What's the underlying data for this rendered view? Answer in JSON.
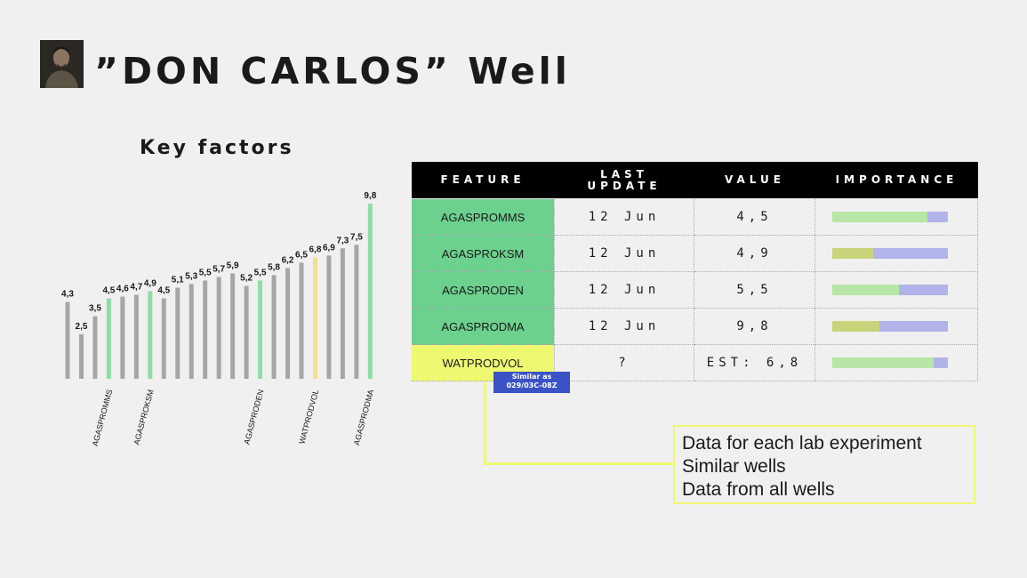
{
  "header": {
    "title": "”DON CARLOS” Well"
  },
  "chart_data": {
    "type": "bar",
    "title": "Key factors",
    "values": [
      4.3,
      2.5,
      3.5,
      4.5,
      4.6,
      4.7,
      4.9,
      4.5,
      5.1,
      5.3,
      5.5,
      5.7,
      5.9,
      5.2,
      5.5,
      5.8,
      6.2,
      6.5,
      6.8,
      6.9,
      7.3,
      7.5,
      9.8
    ],
    "labels": [
      "4,3",
      "2,5",
      "3,5",
      "4,5",
      "4,6",
      "4,7",
      "4,9",
      "4,5",
      "5,1",
      "5,3",
      "5,5",
      "5,7",
      "5,9",
      "5,2",
      "5,5",
      "5,8",
      "6,2",
      "6,5",
      "6,8",
      "6,9",
      "7,3",
      "7,5",
      "9,8"
    ],
    "bar_colors": [
      "#a6a6a6",
      "#a6a6a6",
      "#a6a6a6",
      "#8fdca6",
      "#a6a6a6",
      "#a6a6a6",
      "#8fdca6",
      "#a6a6a6",
      "#a6a6a6",
      "#a6a6a6",
      "#a6a6a6",
      "#a6a6a6",
      "#a6a6a6",
      "#a6a6a6",
      "#8fdca6",
      "#a6a6a6",
      "#a6a6a6",
      "#a6a6a6",
      "#f3e08c",
      "#a6a6a6",
      "#a6a6a6",
      "#a6a6a6",
      "#8fdca6"
    ],
    "category_labels": [
      {
        "index": 3,
        "label": "AGASPROMMS"
      },
      {
        "index": 6,
        "label": "AGASPROKSM"
      },
      {
        "index": 14,
        "label": "AGASPRODEN"
      },
      {
        "index": 18,
        "label": "WATPRODVOL"
      },
      {
        "index": 22,
        "label": "AGASPRODMA"
      }
    ],
    "ylim": [
      0,
      10
    ]
  },
  "table": {
    "headers": [
      "FEATURE",
      "LAST UPDATE",
      "VALUE",
      "IMPORTANCE"
    ],
    "rows": [
      {
        "feature": "AGASPROMMS",
        "date": "12 Jun",
        "value": "4,5",
        "importance": 0.82,
        "bar_color": "#b8e6a6"
      },
      {
        "feature": "AGASPROKSM",
        "date": "12 Jun",
        "value": "4,9",
        "importance": 0.35,
        "bar_color": "#c9d47a"
      },
      {
        "feature": "AGASPRODEN",
        "date": "12 Jun",
        "value": "5,5",
        "importance": 0.58,
        "bar_color": "#b8e6a6"
      },
      {
        "feature": "AGASPRODMA",
        "date": "12 Jun",
        "value": "9,8",
        "importance": 0.41,
        "bar_color": "#c9d47a"
      },
      {
        "feature": "WATPRODVOL",
        "date": "?",
        "value": "EST: 6,8",
        "importance": 0.88,
        "bar_color": "#b8e6a6"
      }
    ]
  },
  "similar_tag": {
    "line1": "Similar as",
    "line2": "029/03C-08Z"
  },
  "notes": [
    "Data for each lab experiment",
    "Similar wells",
    "Data from all wells"
  ]
}
